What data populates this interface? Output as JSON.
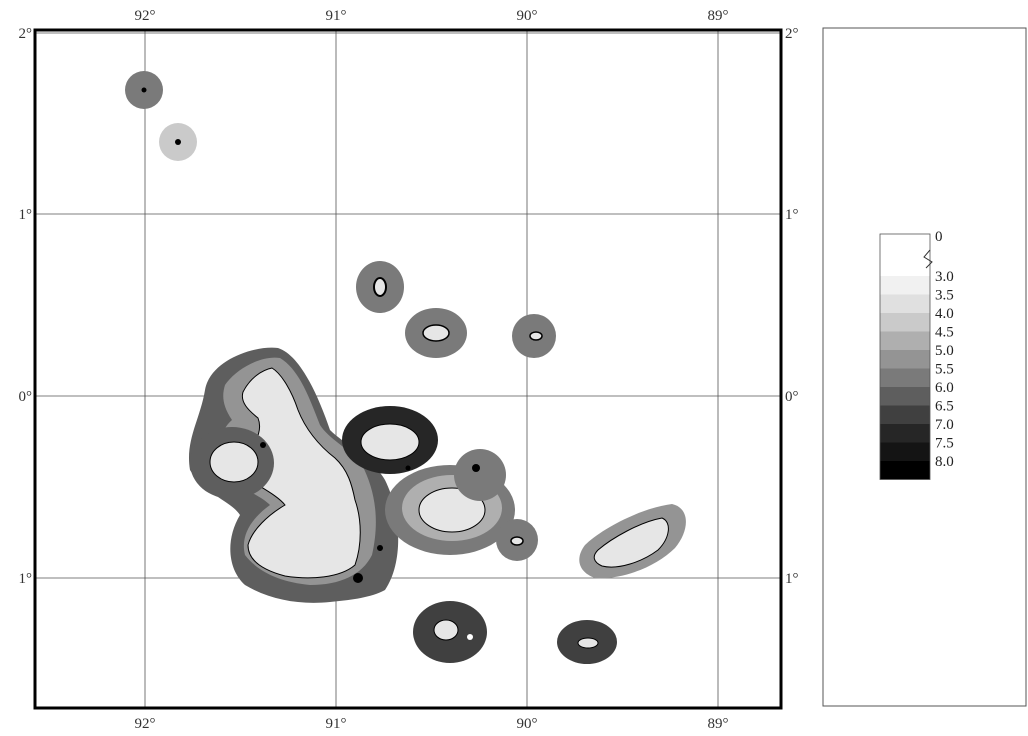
{
  "map": {
    "top_labels": [
      "92°",
      "91°",
      "90°",
      "89°"
    ],
    "bottom_labels": [
      "92°",
      "91°",
      "90°",
      "89°"
    ],
    "left_labels": [
      "2°",
      "1°",
      "0°",
      "1°"
    ],
    "right_labels": [
      "2°",
      "1°",
      "0°",
      "1°"
    ],
    "lon_ticks": [
      92,
      91,
      90,
      89
    ],
    "lat_ticks": [
      2,
      1,
      0,
      -1
    ],
    "lon_range": [
      92.58,
      88.72
    ],
    "lat_range": [
      2.02,
      -1.72
    ]
  },
  "legend": {
    "top_label": "0",
    "labels": [
      "3.0",
      "3.5",
      "4.0",
      "4.5",
      "5.0",
      "5.5",
      "6.0",
      "6.5",
      "7.0",
      "7.5",
      "8.0"
    ],
    "colors": [
      "#ffffff",
      "#f1f1f1",
      "#e0e0e0",
      "#cacaca",
      "#afafaf",
      "#949494",
      "#7a7a7a",
      "#5e5e5e",
      "#404040",
      "#262626",
      "#141414",
      "#000000"
    ]
  },
  "colors": {
    "land": "#e6e6e6",
    "grid": "#555555",
    "frame": "#000000"
  }
}
